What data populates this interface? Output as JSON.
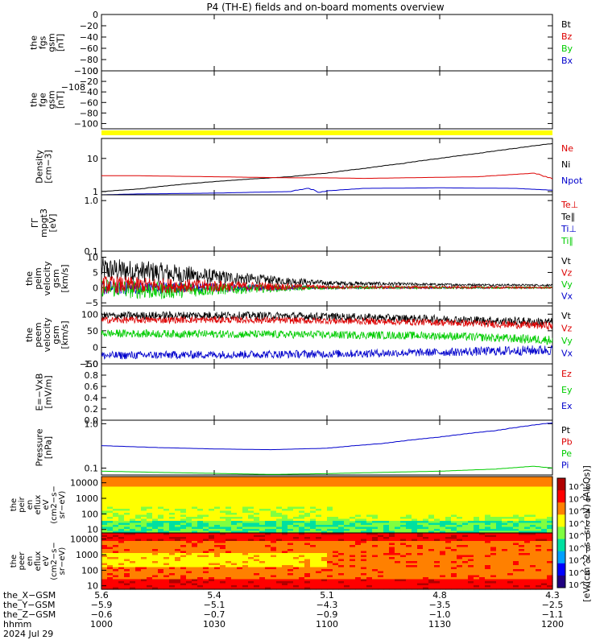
{
  "chart_data": {
    "type": "line",
    "title": "P4 (TH-E) fields and on-board moments overview",
    "panels": [
      {
        "id": "fgs",
        "ylabel": [
          "the",
          "fgs",
          "gsm",
          "[nT]"
        ],
        "scale": "linear",
        "ylim": [
          -100,
          0
        ],
        "ticks": [
          "0",
          "−20",
          "−40",
          "−60",
          "−80",
          "−100"
        ],
        "legend": [
          {
            "name": "Bt",
            "color": "#000000"
          },
          {
            "name": "Bz",
            "color": "#dd0000"
          },
          {
            "name": "By",
            "color": "#00cc00"
          },
          {
            "name": "Bx",
            "color": "#0000cc"
          }
        ],
        "series": []
      },
      {
        "id": "fge",
        "ylabel": [
          "the",
          "fge",
          "gsm",
          "[nT]"
        ],
        "scale": "linear",
        "ylim": [
          -110,
          0
        ],
        "ticks": [
          "0",
          "−20",
          "−40",
          "−60",
          "−80",
          "−100"
        ],
        "overlap_label": "−108",
        "legend": [],
        "series": []
      },
      {
        "id": "density",
        "ylabel": [
          "Density",
          "[cm−3]"
        ],
        "scale": "log",
        "ylim": [
          0.8,
          40
        ],
        "ticks": [
          "10",
          "1"
        ],
        "tick_values": [
          10,
          1
        ],
        "legend": [
          {
            "name": "Ne",
            "color": "#dd0000"
          },
          {
            "name": "Ni",
            "color": "#000000"
          },
          {
            "name": "Npot",
            "color": "#0000cc"
          }
        ],
        "series": [
          {
            "name": "Ni",
            "color": "#000000",
            "x": [
              1000,
              1010,
              1020,
              1030,
              1040,
              1050,
              1100,
              1110,
              1120,
              1130,
              1140,
              1150,
              1200
            ],
            "y": [
              1.0,
              1.2,
              1.6,
              2.0,
              2.4,
              2.8,
              3.6,
              5,
              7,
              10,
              14,
              20,
              28
            ]
          },
          {
            "name": "Ne",
            "color": "#dd0000",
            "x": [
              1000,
              1010,
              1030,
              1050,
              1100,
              1110,
              1130,
              1140,
              1150,
              1155,
              1200
            ],
            "y": [
              3.0,
              3.0,
              2.8,
              2.6,
              2.6,
              2.5,
              2.7,
              2.8,
              3.3,
              3.6,
              2.4
            ]
          },
          {
            "name": "Npot",
            "color": "#0000cc",
            "x": [
              1000,
              1010,
              1030,
              1050,
              1055,
              1058,
              1100,
              1110,
              1130,
              1150,
              1200
            ],
            "y": [
              0.8,
              0.85,
              0.9,
              1.0,
              1.25,
              0.95,
              1.05,
              1.25,
              1.3,
              1.25,
              1.1
            ]
          }
        ]
      },
      {
        "id": "temp",
        "ylabel": [
          "ΓΓ",
          "mpgt3",
          "[eV]"
        ],
        "scale": "log",
        "ylim": [
          0.1,
          1.3
        ],
        "ticks": [
          "1.0",
          "0.1"
        ],
        "tick_values": [
          1.0,
          0.1
        ],
        "legend": [
          {
            "name": "Te⊥",
            "color": "#dd0000"
          },
          {
            "name": "Te∥",
            "color": "#000000"
          },
          {
            "name": "Ti⊥",
            "color": "#0000cc"
          },
          {
            "name": "Ti∥",
            "color": "#00cc00"
          }
        ],
        "series": []
      },
      {
        "id": "peim",
        "ylabel": [
          "the",
          "peim",
          "velocity",
          "gsm",
          "[km/s]"
        ],
        "scale": "linear",
        "ylim": [
          -6,
          12
        ],
        "ticks": [
          "10",
          "5",
          "0",
          "−5"
        ],
        "tick_values": [
          10,
          5,
          0,
          -5
        ],
        "legend": [
          {
            "name": "Vt",
            "color": "#000000"
          },
          {
            "name": "Vz",
            "color": "#dd0000"
          },
          {
            "name": "Vy",
            "color": "#00cc00"
          },
          {
            "name": "Vx",
            "color": "#0000cc"
          }
        ],
        "series": [
          {
            "name": "Vt",
            "color": "#000000",
            "noisy": true,
            "x": [
              1000,
              1015,
              1030,
              1045,
              1100,
              1130,
              1200
            ],
            "y": [
              6,
              5,
              3.5,
              2.5,
              1.5,
              1,
              0.8
            ],
            "amp": [
              4,
              3.5,
              2.5,
              1.5,
              0.8,
              0.4,
              0.3
            ]
          },
          {
            "name": "Vx",
            "color": "#0000cc",
            "noisy": true,
            "x": [
              1000,
              1030,
              1100,
              1200
            ],
            "y": [
              0,
              0,
              0,
              0
            ],
            "amp": [
              2.5,
              1.5,
              0.4,
              0.2
            ]
          },
          {
            "name": "Vy",
            "color": "#00cc00",
            "noisy": true,
            "x": [
              1000,
              1015,
              1030,
              1100,
              1200
            ],
            "y": [
              0,
              -1,
              -0.5,
              0,
              0
            ],
            "amp": [
              3,
              3,
              2,
              0.5,
              0.3
            ]
          },
          {
            "name": "Vz",
            "color": "#dd0000",
            "noisy": true,
            "x": [
              1000,
              1030,
              1100,
              1200
            ],
            "y": [
              1,
              0.5,
              0.2,
              0
            ],
            "amp": [
              3,
              2,
              0.6,
              0.3
            ]
          }
        ]
      },
      {
        "id": "peem",
        "ylabel": [
          "the",
          "peem",
          "velocity",
          "gsm",
          "[km/s]"
        ],
        "scale": "linear",
        "ylim": [
          -50,
          125
        ],
        "ticks": [
          "100",
          "50",
          "0",
          "−50"
        ],
        "tick_values": [
          100,
          50,
          0,
          -50
        ],
        "legend": [
          {
            "name": "Vt",
            "color": "#000000"
          },
          {
            "name": "Vz",
            "color": "#dd0000"
          },
          {
            "name": "Vy",
            "color": "#00cc00"
          },
          {
            "name": "Vx",
            "color": "#0000cc"
          }
        ],
        "series": [
          {
            "name": "Vt",
            "color": "#000000",
            "noisy": true,
            "x": [
              1000,
              1030,
              1100,
              1130,
              1200
            ],
            "y": [
              95,
              97,
              93,
              85,
              75
            ],
            "amp": [
              12,
              12,
              12,
              12,
              14
            ]
          },
          {
            "name": "Vz",
            "color": "#dd0000",
            "noisy": true,
            "x": [
              1000,
              1030,
              1100,
              1130,
              1200
            ],
            "y": [
              82,
              83,
              80,
              75,
              65
            ],
            "amp": [
              10,
              10,
              10,
              10,
              12
            ]
          },
          {
            "name": "Vy",
            "color": "#00cc00",
            "noisy": true,
            "x": [
              1000,
              1030,
              1100,
              1130,
              1200
            ],
            "y": [
              42,
              40,
              38,
              35,
              22
            ],
            "amp": [
              12,
              12,
              12,
              12,
              14
            ]
          },
          {
            "name": "Vx",
            "color": "#0000cc",
            "noisy": true,
            "x": [
              1000,
              1030,
              1100,
              1130,
              1200
            ],
            "y": [
              -25,
              -22,
              -20,
              -15,
              -8
            ],
            "amp": [
              12,
              12,
              12,
              12,
              16
            ]
          }
        ]
      },
      {
        "id": "efield",
        "ylabel": [
          "E=−VxB",
          "[mV/m]"
        ],
        "scale": "linear",
        "ylim": [
          0,
          1
        ],
        "ticks": [
          "1.0",
          "0.8",
          "0.6",
          "0.4",
          "0.2",
          "0.0"
        ],
        "tick_values": [
          1,
          0.8,
          0.6,
          0.4,
          0.2,
          0
        ],
        "legend": [
          {
            "name": "Ez",
            "color": "#dd0000"
          },
          {
            "name": "Ey",
            "color": "#00cc00"
          },
          {
            "name": "Ex",
            "color": "#0000cc"
          }
        ],
        "series": []
      },
      {
        "id": "pressure",
        "ylabel": [
          "Pressure",
          "[nPa]"
        ],
        "scale": "log",
        "ylim": [
          0.07,
          1.2
        ],
        "ticks": [
          "1.0",
          "0.1"
        ],
        "tick_values": [
          1.0,
          0.1
        ],
        "legend": [
          {
            "name": "Pt",
            "color": "#000000"
          },
          {
            "name": "Pb",
            "color": "#dd0000"
          },
          {
            "name": "Pe",
            "color": "#00cc00"
          },
          {
            "name": "Pi",
            "color": "#0000cc"
          }
        ],
        "series": [
          {
            "name": "Pi",
            "color": "#0000cc",
            "x": [
              1000,
              1015,
              1030,
              1045,
              1100,
              1115,
              1130,
              1145,
              1200
            ],
            "y": [
              0.32,
              0.29,
              0.27,
              0.26,
              0.28,
              0.36,
              0.5,
              0.7,
              1.05
            ]
          },
          {
            "name": "Pe",
            "color": "#00cc00",
            "x": [
              1000,
              1015,
              1030,
              1045,
              1100,
              1115,
              1130,
              1145,
              1155,
              1200
            ],
            "y": [
              0.085,
              0.08,
              0.076,
              0.072,
              0.075,
              0.08,
              0.085,
              0.095,
              0.11,
              0.1
            ]
          }
        ]
      }
    ],
    "spectrograms": [
      {
        "id": "peir",
        "ylabel": [
          "the",
          "peir",
          "en",
          "eflux",
          "eV",
          "(cm2−s−",
          "sr−eV)"
        ],
        "ticks": [
          "10000",
          "1000",
          "100",
          "10"
        ],
        "tick_values": [
          10000,
          1000,
          100,
          10
        ],
        "ylim": [
          6,
          25000
        ]
      },
      {
        "id": "peer",
        "ylabel": [
          "the",
          "peer",
          "en",
          "eflux",
          "eV",
          "(cm2−s−",
          "sr−eV)"
        ],
        "ticks": [
          "10000",
          "1000",
          "100",
          "10"
        ],
        "tick_values": [
          10000,
          1000,
          100,
          10
        ],
        "ylim": [
          6,
          25000
        ]
      }
    ],
    "colorbar": {
      "tick_labels": [
        "10^8",
        "10^6",
        "10^4",
        "10^2",
        "10^0",
        "10^8",
        "10^6",
        "10^4",
        "10^2"
      ],
      "label": "[eV/(cm^2−s−sr−eV) (All Qs)]",
      "colors": [
        "#b00000",
        "#ff0000",
        "#ff8000",
        "#ffff00",
        "#80ff40",
        "#00e0a0",
        "#00a0ff",
        "#0000ff",
        "#200080"
      ]
    },
    "x_axis": {
      "xlim": [
        1000,
        1200
      ],
      "rows": [
        {
          "label": "the_X−GSM",
          "values": [
            "5.6",
            "5.4",
            "5.1",
            "4.8",
            "4.3"
          ]
        },
        {
          "label": "the_Y−GSM",
          "values": [
            "−5.9",
            "−5.1",
            "−4.3",
            "−3.5",
            "−2.5"
          ]
        },
        {
          "label": "the_Z−GSM",
          "values": [
            "−0.6",
            "−0.7",
            "−0.9",
            "−1.0",
            "−1.1"
          ]
        },
        {
          "label": "hhmm",
          "values": [
            "1000",
            "1030",
            "1100",
            "1130",
            "1200"
          ]
        }
      ],
      "date": "2024 Jul 29"
    },
    "status_bar_color": "#ffff00"
  }
}
